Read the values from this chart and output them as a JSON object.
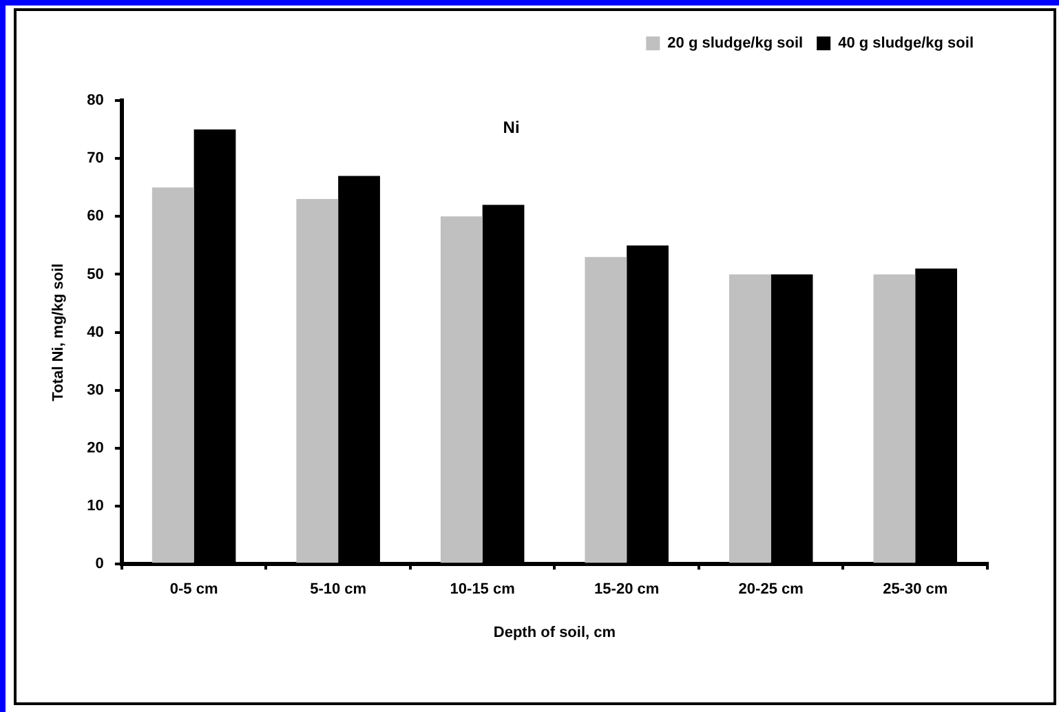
{
  "chart_data": {
    "type": "bar",
    "title": "Ni",
    "xlabel": "Depth of soil, cm",
    "ylabel": "Total Ni, mg/kg soil",
    "categories": [
      "0-5 cm",
      "5-10 cm",
      "10-15 cm",
      "15-20 cm",
      "20-25 cm",
      "25-30 cm"
    ],
    "series": [
      {
        "name": "20 g sludge/kg soil",
        "color": "#c0c0c0",
        "values": [
          65,
          63,
          60,
          53,
          50,
          50
        ]
      },
      {
        "name": "40 g sludge/kg soil",
        "color": "#000000",
        "values": [
          75,
          67,
          62,
          55,
          50,
          51
        ]
      }
    ],
    "ylim": [
      0,
      80
    ],
    "yticks": [
      0,
      10,
      20,
      30,
      40,
      50,
      60,
      70,
      80
    ],
    "grid": false,
    "legend": "top right"
  }
}
